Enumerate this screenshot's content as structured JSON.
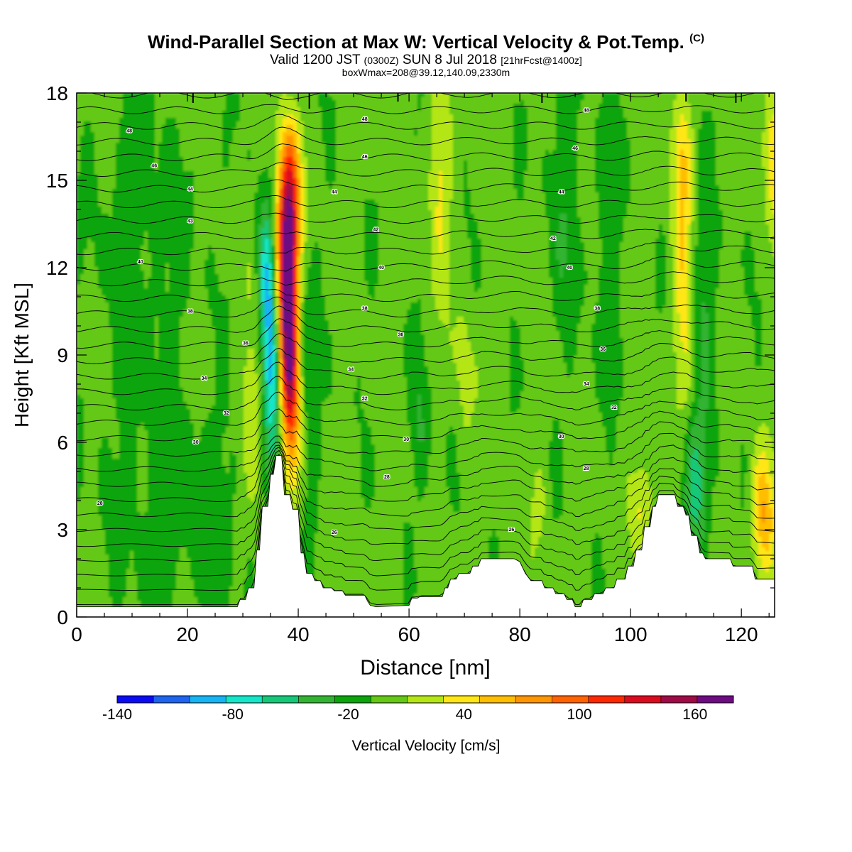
{
  "header": {
    "title": "Wind-Parallel Section at Max W: Vertical Velocity & Pot.Temp.",
    "title_mark": "(C)",
    "subtitle_a": "Valid 1200 JST",
    "subtitle_b": "(0300Z)",
    "subtitle_c": "SUN 8 Jul 2018",
    "subtitle_d": "[21hrFcst@1400z]",
    "subtitle2": "boxWmax=208@39.12,140.09,2330m"
  },
  "chart_data": {
    "type": "heatmap",
    "xlabel": "Distance [nm]",
    "ylabel": "Height [Kft MSL]",
    "xlim": [
      0,
      126
    ],
    "ylim": [
      0,
      18
    ],
    "x_ticks": [
      0,
      20,
      40,
      60,
      80,
      100,
      120
    ],
    "y_ticks": [
      0,
      3,
      6,
      9,
      12,
      15,
      18
    ],
    "colorbar": {
      "label": "Vertical Velocity [cm/s]",
      "tick_labels": [
        "-140",
        "-80",
        "-20",
        "40",
        "100",
        "160"
      ],
      "tick_values": [
        -140,
        -80,
        -20,
        40,
        100,
        160
      ],
      "bounds": [
        -140,
        180
      ],
      "step": 20,
      "colors": [
        "#0a0af5",
        "#1e64f0",
        "#14b4f5",
        "#14e6c8",
        "#14c878",
        "#32b432",
        "#0aa50a",
        "#64c814",
        "#b4e614",
        "#ffe614",
        "#ffbe00",
        "#ff9600",
        "#ff6400",
        "#ff2800",
        "#dc0a1e",
        "#a00a46",
        "#6e0a82"
      ]
    },
    "w_fields": [
      {
        "x": 38.2,
        "z": 10.0,
        "sx": 1.3,
        "sz": 3.2,
        "w": 210
      },
      {
        "x": 38.6,
        "z": 13.6,
        "sx": 1.4,
        "sz": 1.5,
        "w": 95
      },
      {
        "x": 39.0,
        "z": 15.6,
        "sx": 1.3,
        "sz": 1.2,
        "w": 50
      },
      {
        "x": 35.0,
        "z": 9.0,
        "sx": 1.2,
        "sz": 2.8,
        "w": -95
      },
      {
        "x": 34.2,
        "z": 12.0,
        "sx": 1.0,
        "sz": 1.5,
        "w": -35
      },
      {
        "x": 32.0,
        "z": 6.5,
        "sx": 1.5,
        "sz": 2.2,
        "w": 40
      },
      {
        "x": 41.0,
        "z": 9.0,
        "sx": 1.5,
        "sz": 3.5,
        "w": -25
      },
      {
        "x": 109.5,
        "z": 11.5,
        "sx": 1.4,
        "sz": 3.5,
        "w": 48
      },
      {
        "x": 109.5,
        "z": 16.0,
        "sx": 1.2,
        "sz": 1.5,
        "w": 35
      },
      {
        "x": 111.5,
        "z": 4.5,
        "sx": 1.6,
        "sz": 1.8,
        "w": -60
      },
      {
        "x": 113.0,
        "z": 11.0,
        "sx": 1.5,
        "sz": 3.0,
        "w": -28
      },
      {
        "x": 65.5,
        "z": 15.0,
        "sx": 1.4,
        "sz": 2.5,
        "w": 40
      },
      {
        "x": 70.0,
        "z": 8.5,
        "sx": 1.2,
        "sz": 2.0,
        "w": 25
      },
      {
        "x": 62.0,
        "z": 6.5,
        "sx": 1.2,
        "sz": 1.8,
        "w": -25
      },
      {
        "x": 83.5,
        "z": 4.0,
        "sx": 1.0,
        "sz": 1.2,
        "w": 22
      },
      {
        "x": 102.0,
        "z": 3.8,
        "sx": 1.5,
        "sz": 1.2,
        "w": 40
      },
      {
        "x": 124.0,
        "z": 3.5,
        "sx": 1.5,
        "sz": 1.5,
        "w": 75
      },
      {
        "x": 126.0,
        "z": 16.0,
        "sx": 1.5,
        "sz": 2.5,
        "w": 42
      },
      {
        "x": 12.0,
        "z": 13.0,
        "sx": 6.0,
        "sz": 4.0,
        "w": -15
      },
      {
        "x": 20.0,
        "z": 4.0,
        "sx": 10.0,
        "sz": 2.5,
        "w": -18
      },
      {
        "x": 88.0,
        "z": 14.0,
        "sx": 2.0,
        "sz": 3.5,
        "w": -20
      },
      {
        "x": 96.0,
        "z": 13.0,
        "sx": 1.8,
        "sz": 3.0,
        "w": -20
      }
    ],
    "terrain": [
      [
        0,
        0.35
      ],
      [
        29,
        0.35
      ],
      [
        29.5,
        0.6
      ],
      [
        30.5,
        0.6
      ],
      [
        31,
        1.0
      ],
      [
        32,
        1.0
      ],
      [
        32.5,
        2.3
      ],
      [
        33,
        2.3
      ],
      [
        33.5,
        3.8
      ],
      [
        34.5,
        3.8
      ],
      [
        35,
        4.9
      ],
      [
        35.5,
        4.9
      ],
      [
        36,
        5.55
      ],
      [
        37,
        5.55
      ],
      [
        37.5,
        4.2
      ],
      [
        38.5,
        4.2
      ],
      [
        39,
        3.7
      ],
      [
        40,
        3.7
      ],
      [
        40.5,
        2.2
      ],
      [
        41,
        2.2
      ],
      [
        41.5,
        1.5
      ],
      [
        42.5,
        1.5
      ],
      [
        43,
        1.25
      ],
      [
        44,
        1.25
      ],
      [
        44.5,
        1.0
      ],
      [
        46,
        1.0
      ],
      [
        46.5,
        0.9
      ],
      [
        48,
        0.9
      ],
      [
        48.5,
        0.75
      ],
      [
        52,
        0.75
      ],
      [
        52.5,
        0.55
      ],
      [
        53,
        0.4
      ],
      [
        54,
        0.35
      ],
      [
        60,
        0.4
      ],
      [
        60.5,
        0.65
      ],
      [
        61.5,
        0.65
      ],
      [
        62,
        0.7
      ],
      [
        66,
        0.7
      ],
      [
        66.5,
        1.0
      ],
      [
        67,
        1.0
      ],
      [
        67.5,
        1.3
      ],
      [
        68.5,
        1.3
      ],
      [
        69,
        1.5
      ],
      [
        71,
        1.5
      ],
      [
        71.5,
        1.75
      ],
      [
        72.5,
        1.75
      ],
      [
        73,
        2.0
      ],
      [
        76,
        2.0
      ],
      [
        77,
        2.0
      ],
      [
        78,
        2.0
      ],
      [
        79,
        2.0
      ],
      [
        80,
        1.9
      ],
      [
        81,
        1.5
      ],
      [
        82,
        1.25
      ],
      [
        84,
        1.25
      ],
      [
        84.5,
        1.0
      ],
      [
        86,
        1.0
      ],
      [
        86.5,
        0.8
      ],
      [
        88,
        0.8
      ],
      [
        88.5,
        0.6
      ],
      [
        89.5,
        0.6
      ],
      [
        90,
        0.35
      ],
      [
        91,
        0.35
      ],
      [
        91.5,
        0.6
      ],
      [
        93,
        0.6
      ],
      [
        93.5,
        0.8
      ],
      [
        95,
        0.8
      ],
      [
        95.5,
        1.0
      ],
      [
        97,
        1.0
      ],
      [
        97.5,
        1.3
      ],
      [
        99,
        1.3
      ],
      [
        99.5,
        1.75
      ],
      [
        100.5,
        1.75
      ],
      [
        101,
        2.3
      ],
      [
        102,
        2.3
      ],
      [
        102.5,
        3.1
      ],
      [
        103.5,
        3.1
      ],
      [
        104,
        3.8
      ],
      [
        104.5,
        3.8
      ],
      [
        105,
        4.2
      ],
      [
        108,
        4.2
      ],
      [
        108.5,
        3.8
      ],
      [
        109.5,
        3.8
      ],
      [
        110,
        3.5
      ],
      [
        110.5,
        3.5
      ],
      [
        111,
        2.8
      ],
      [
        112,
        2.8
      ],
      [
        112.5,
        2.2
      ],
      [
        113,
        2.2
      ],
      [
        113.5,
        2.0
      ],
      [
        118,
        2.0
      ],
      [
        118.5,
        1.75
      ],
      [
        122,
        1.75
      ],
      [
        122.5,
        1.3
      ],
      [
        126,
        1.3
      ]
    ],
    "theta_contour_labels": [
      {
        "text": "48",
        "x": 9.5,
        "z": 16.7
      },
      {
        "text": "46",
        "x": 14,
        "z": 15.5
      },
      {
        "text": "44",
        "x": 20.5,
        "z": 14.7
      },
      {
        "text": "43",
        "x": 20.5,
        "z": 13.6
      },
      {
        "text": "40",
        "x": 11.5,
        "z": 12.2
      },
      {
        "text": "38",
        "x": 20.5,
        "z": 10.5
      },
      {
        "text": "36",
        "x": 30.5,
        "z": 9.4
      },
      {
        "text": "34",
        "x": 23,
        "z": 8.2
      },
      {
        "text": "32",
        "x": 27,
        "z": 7.0
      },
      {
        "text": "30",
        "x": 21.5,
        "z": 6.0
      },
      {
        "text": "28",
        "x": 4.2,
        "z": 3.9
      },
      {
        "text": "48",
        "x": 52,
        "z": 17.1
      },
      {
        "text": "46",
        "x": 52,
        "z": 15.8
      },
      {
        "text": "44",
        "x": 46.5,
        "z": 14.6
      },
      {
        "text": "42",
        "x": 54,
        "z": 13.3
      },
      {
        "text": "40",
        "x": 55,
        "z": 12.0
      },
      {
        "text": "38",
        "x": 52,
        "z": 10.6
      },
      {
        "text": "36",
        "x": 58.5,
        "z": 9.7
      },
      {
        "text": "34",
        "x": 49.5,
        "z": 8.5
      },
      {
        "text": "32",
        "x": 52,
        "z": 7.5
      },
      {
        "text": "30",
        "x": 59.5,
        "z": 6.1
      },
      {
        "text": "28",
        "x": 56,
        "z": 4.8
      },
      {
        "text": "26",
        "x": 46.5,
        "z": 2.9
      },
      {
        "text": "48",
        "x": 92,
        "z": 17.4
      },
      {
        "text": "46",
        "x": 90,
        "z": 16.1
      },
      {
        "text": "44",
        "x": 87.5,
        "z": 14.6
      },
      {
        "text": "42",
        "x": 86,
        "z": 13.0
      },
      {
        "text": "40",
        "x": 89,
        "z": 12.0
      },
      {
        "text": "38",
        "x": 94,
        "z": 10.6
      },
      {
        "text": "36",
        "x": 95,
        "z": 9.2
      },
      {
        "text": "34",
        "x": 92,
        "z": 8.0
      },
      {
        "text": "32",
        "x": 97,
        "z": 7.2
      },
      {
        "text": "30",
        "x": 87.5,
        "z": 6.2
      },
      {
        "text": "28",
        "x": 92,
        "z": 5.1
      },
      {
        "text": "26",
        "x": 78.5,
        "z": 3.0
      }
    ]
  }
}
